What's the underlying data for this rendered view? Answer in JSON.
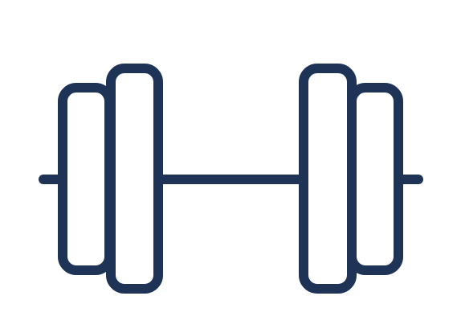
{
  "icon": {
    "name": "dumbbell-icon",
    "stroke_color": "#1f3356",
    "background_color": "#ffffff"
  }
}
